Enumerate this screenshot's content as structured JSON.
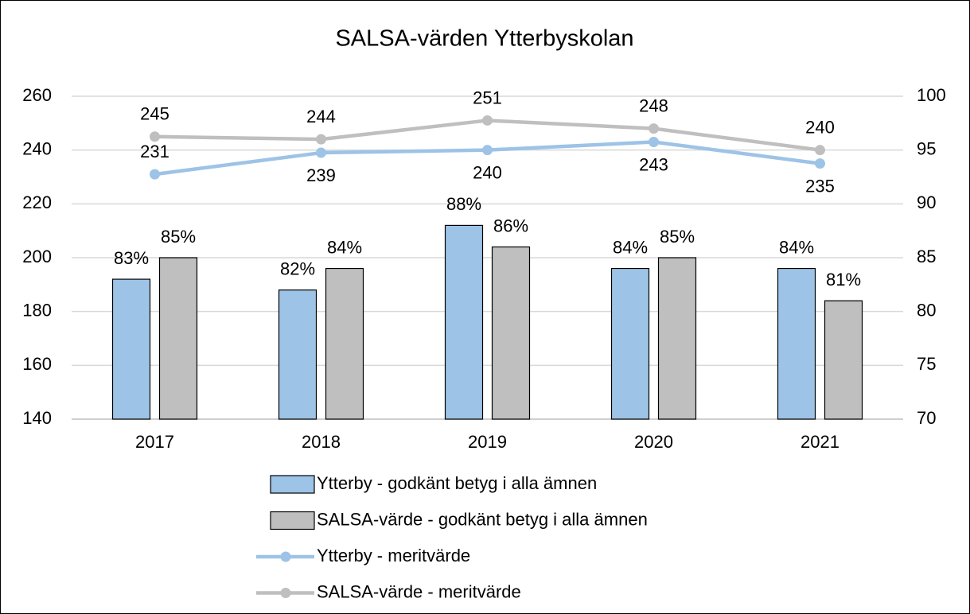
{
  "chart_data": {
    "type": "combo",
    "title": "SALSA-värden Ytterbyskolan",
    "categories": [
      "2017",
      "2018",
      "2019",
      "2020",
      "2021"
    ],
    "ylim": [
      140,
      260
    ],
    "yticks": [
      140,
      160,
      180,
      200,
      220,
      240,
      260
    ],
    "y2lim": [
      70,
      100
    ],
    "y2ticks": [
      70,
      75,
      80,
      85,
      90,
      95,
      100
    ],
    "grid": true,
    "legend": "bottom",
    "series": [
      {
        "name": "Ytterby - godkänt betyg i alla ämnen",
        "type": "bar",
        "axis": "y2",
        "color": "#9dc3e6",
        "values": [
          83,
          82,
          88,
          84,
          84
        ],
        "value_labels": [
          "83%",
          "82%",
          "88%",
          "84%",
          "84%"
        ]
      },
      {
        "name": "SALSA-värde - godkänt betyg i alla ämnen",
        "type": "bar",
        "axis": "y2",
        "color": "#bfbfbf",
        "values": [
          85,
          84,
          86,
          85,
          81
        ],
        "value_labels": [
          "85%",
          "84%",
          "86%",
          "85%",
          "81%"
        ]
      },
      {
        "name": "Ytterby - meritvärde",
        "type": "line",
        "color": "#9dc3e6",
        "values": [
          231,
          239,
          240,
          243,
          235
        ]
      },
      {
        "name": "SALSA-värde - meritvärde",
        "type": "line",
        "color": "#bfbfbf",
        "values": [
          245,
          244,
          251,
          248,
          240
        ]
      }
    ]
  }
}
